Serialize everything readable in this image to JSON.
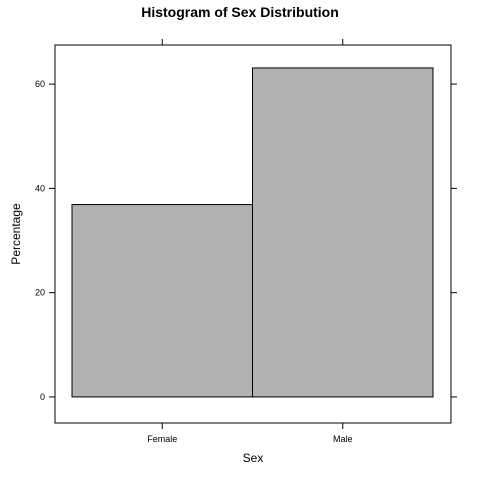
{
  "chart_data": {
    "type": "bar",
    "title": "Histogram of Sex Distribution",
    "xlabel": "Sex",
    "ylabel": "Percentage",
    "categories": [
      "Female",
      "Male"
    ],
    "values": [
      36.9,
      63.1
    ],
    "ylim": [
      -5,
      67.5
    ],
    "yticks": [
      "0",
      "20",
      "40",
      "60"
    ],
    "bar_color": "#b2b2b2",
    "grid": false,
    "legend": "none"
  }
}
